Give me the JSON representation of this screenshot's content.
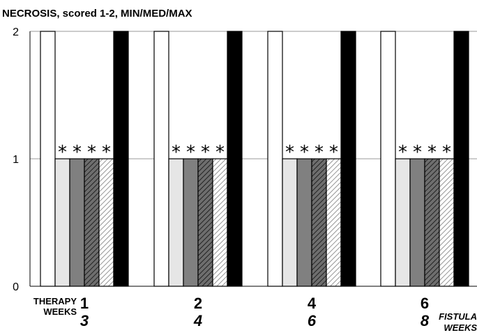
{
  "chart_data": {
    "type": "bar",
    "title": "NECROSIS, scored 1-2, MIN/MED/MAX",
    "ylim": [
      0,
      2
    ],
    "yticks": [
      "0",
      "1",
      "2"
    ],
    "grid": true,
    "row_labels": {
      "therapy": "THERAPY",
      "weeks_left": "WEEKS",
      "fistula": "FISTULA",
      "weeks_right": "WEEKS"
    },
    "groups": [
      {
        "therapy_weeks": "1",
        "fistula_weeks": "3"
      },
      {
        "therapy_weeks": "2",
        "fistula_weeks": "4"
      },
      {
        "therapy_weeks": "4",
        "fistula_weeks": "6"
      },
      {
        "therapy_weeks": "6",
        "fistula_weeks": "8"
      }
    ],
    "series": [
      {
        "fill": "#ffffff",
        "pattern": "none",
        "values": [
          2,
          2,
          2,
          2
        ]
      },
      {
        "fill": "#e6e6e6",
        "pattern": "none",
        "values": [
          1,
          1,
          1,
          1
        ]
      },
      {
        "fill": "#808080",
        "pattern": "none",
        "values": [
          1,
          1,
          1,
          1
        ]
      },
      {
        "fill": "#6e6e6e",
        "pattern": "dark-hatch",
        "values": [
          1,
          1,
          1,
          1
        ]
      },
      {
        "fill": "#ffffff",
        "pattern": "light-hatch",
        "values": [
          1,
          1,
          1,
          1
        ]
      },
      {
        "fill": "#000000",
        "pattern": "none",
        "values": [
          2,
          2,
          2,
          2
        ]
      }
    ],
    "annotations": [
      {
        "text": "*",
        "series": [
          1,
          2,
          3,
          4
        ],
        "groups": [
          0,
          1,
          2,
          3
        ]
      }
    ]
  }
}
